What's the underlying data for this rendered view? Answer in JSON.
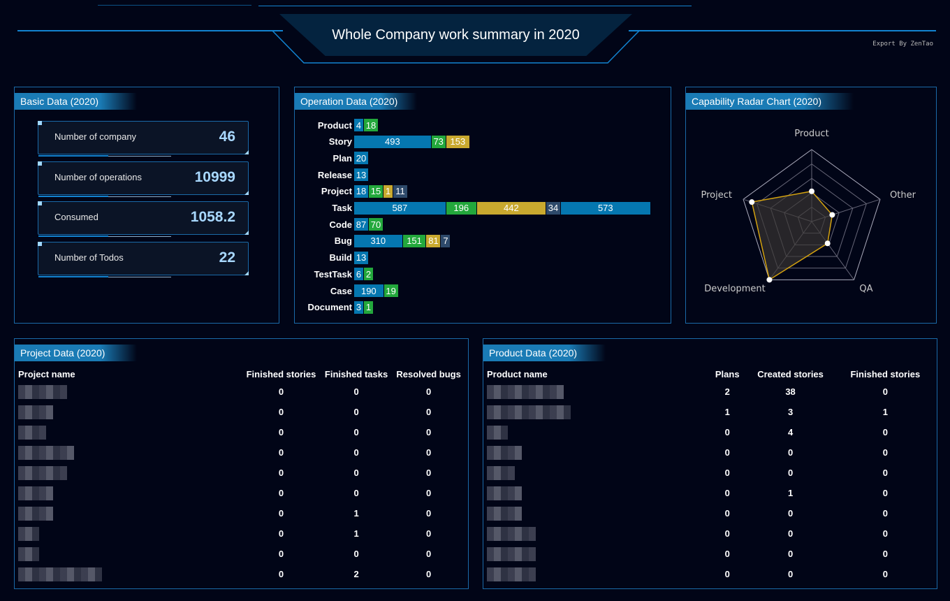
{
  "header": {
    "title": "Whole Company work summary in 2020",
    "export_label": "Export By ZenTao"
  },
  "basic": {
    "title": "Basic Data (2020)",
    "cards": [
      {
        "label": "Number of company",
        "value": "46"
      },
      {
        "label": "Number of operations",
        "value": "10999"
      },
      {
        "label": "Consumed",
        "value": "1058.2"
      },
      {
        "label": "Number of Todos",
        "value": "22"
      }
    ]
  },
  "colors": {
    "blue": "#0577b0",
    "green": "#23a83c",
    "yellow": "#c9a92f",
    "slate": "#2e4a6b"
  },
  "chart_data": [
    {
      "type": "bar",
      "orientation": "horizontal",
      "stacked": true,
      "title": "Operation Data (2020)",
      "categories": [
        "Product",
        "Story",
        "Plan",
        "Release",
        "Project",
        "Task",
        "Code",
        "Bug",
        "Build",
        "TestTask",
        "Case",
        "Document"
      ],
      "rows": [
        [
          4,
          18
        ],
        [
          493,
          73,
          153
        ],
        [
          20
        ],
        [
          13
        ],
        [
          18,
          15,
          1,
          11
        ],
        [
          587,
          196,
          442,
          34,
          573
        ],
        [
          87,
          70
        ],
        [
          310,
          151,
          81,
          7
        ],
        [
          13
        ],
        [
          6,
          2
        ],
        [
          190,
          19
        ],
        [
          3,
          1
        ]
      ],
      "segment_colors": [
        "blue",
        "green",
        "yellow",
        "slate",
        "blue"
      ]
    },
    {
      "type": "radar",
      "title": "Capability Radar Chart (2020)",
      "axes": [
        "Product",
        "Other",
        "QA",
        "Development",
        "Project"
      ],
      "values": [
        0.42,
        0.3,
        0.375,
        1.0,
        0.875
      ],
      "max": 1
    }
  ],
  "projects": {
    "title": "Project Data (2020)",
    "headers": [
      "Project name",
      "Finished stories",
      "Finished tasks",
      "Resolved bugs"
    ],
    "rows": [
      [
        0,
        0,
        0
      ],
      [
        0,
        0,
        0
      ],
      [
        0,
        0,
        0
      ],
      [
        0,
        0,
        0
      ],
      [
        0,
        0,
        0
      ],
      [
        0,
        0,
        0
      ],
      [
        0,
        1,
        0
      ],
      [
        0,
        1,
        0
      ],
      [
        0,
        0,
        0
      ],
      [
        0,
        2,
        0
      ]
    ]
  },
  "products": {
    "title": "Product Data (2020)",
    "headers": [
      "Product name",
      "Plans",
      "Created stories",
      "Finished stories"
    ],
    "rows": [
      [
        2,
        38,
        0
      ],
      [
        1,
        3,
        1
      ],
      [
        0,
        4,
        0
      ],
      [
        0,
        0,
        0
      ],
      [
        0,
        0,
        0
      ],
      [
        0,
        1,
        0
      ],
      [
        0,
        0,
        0
      ],
      [
        0,
        0,
        0
      ],
      [
        0,
        0,
        0
      ],
      [
        0,
        0,
        0
      ]
    ]
  }
}
